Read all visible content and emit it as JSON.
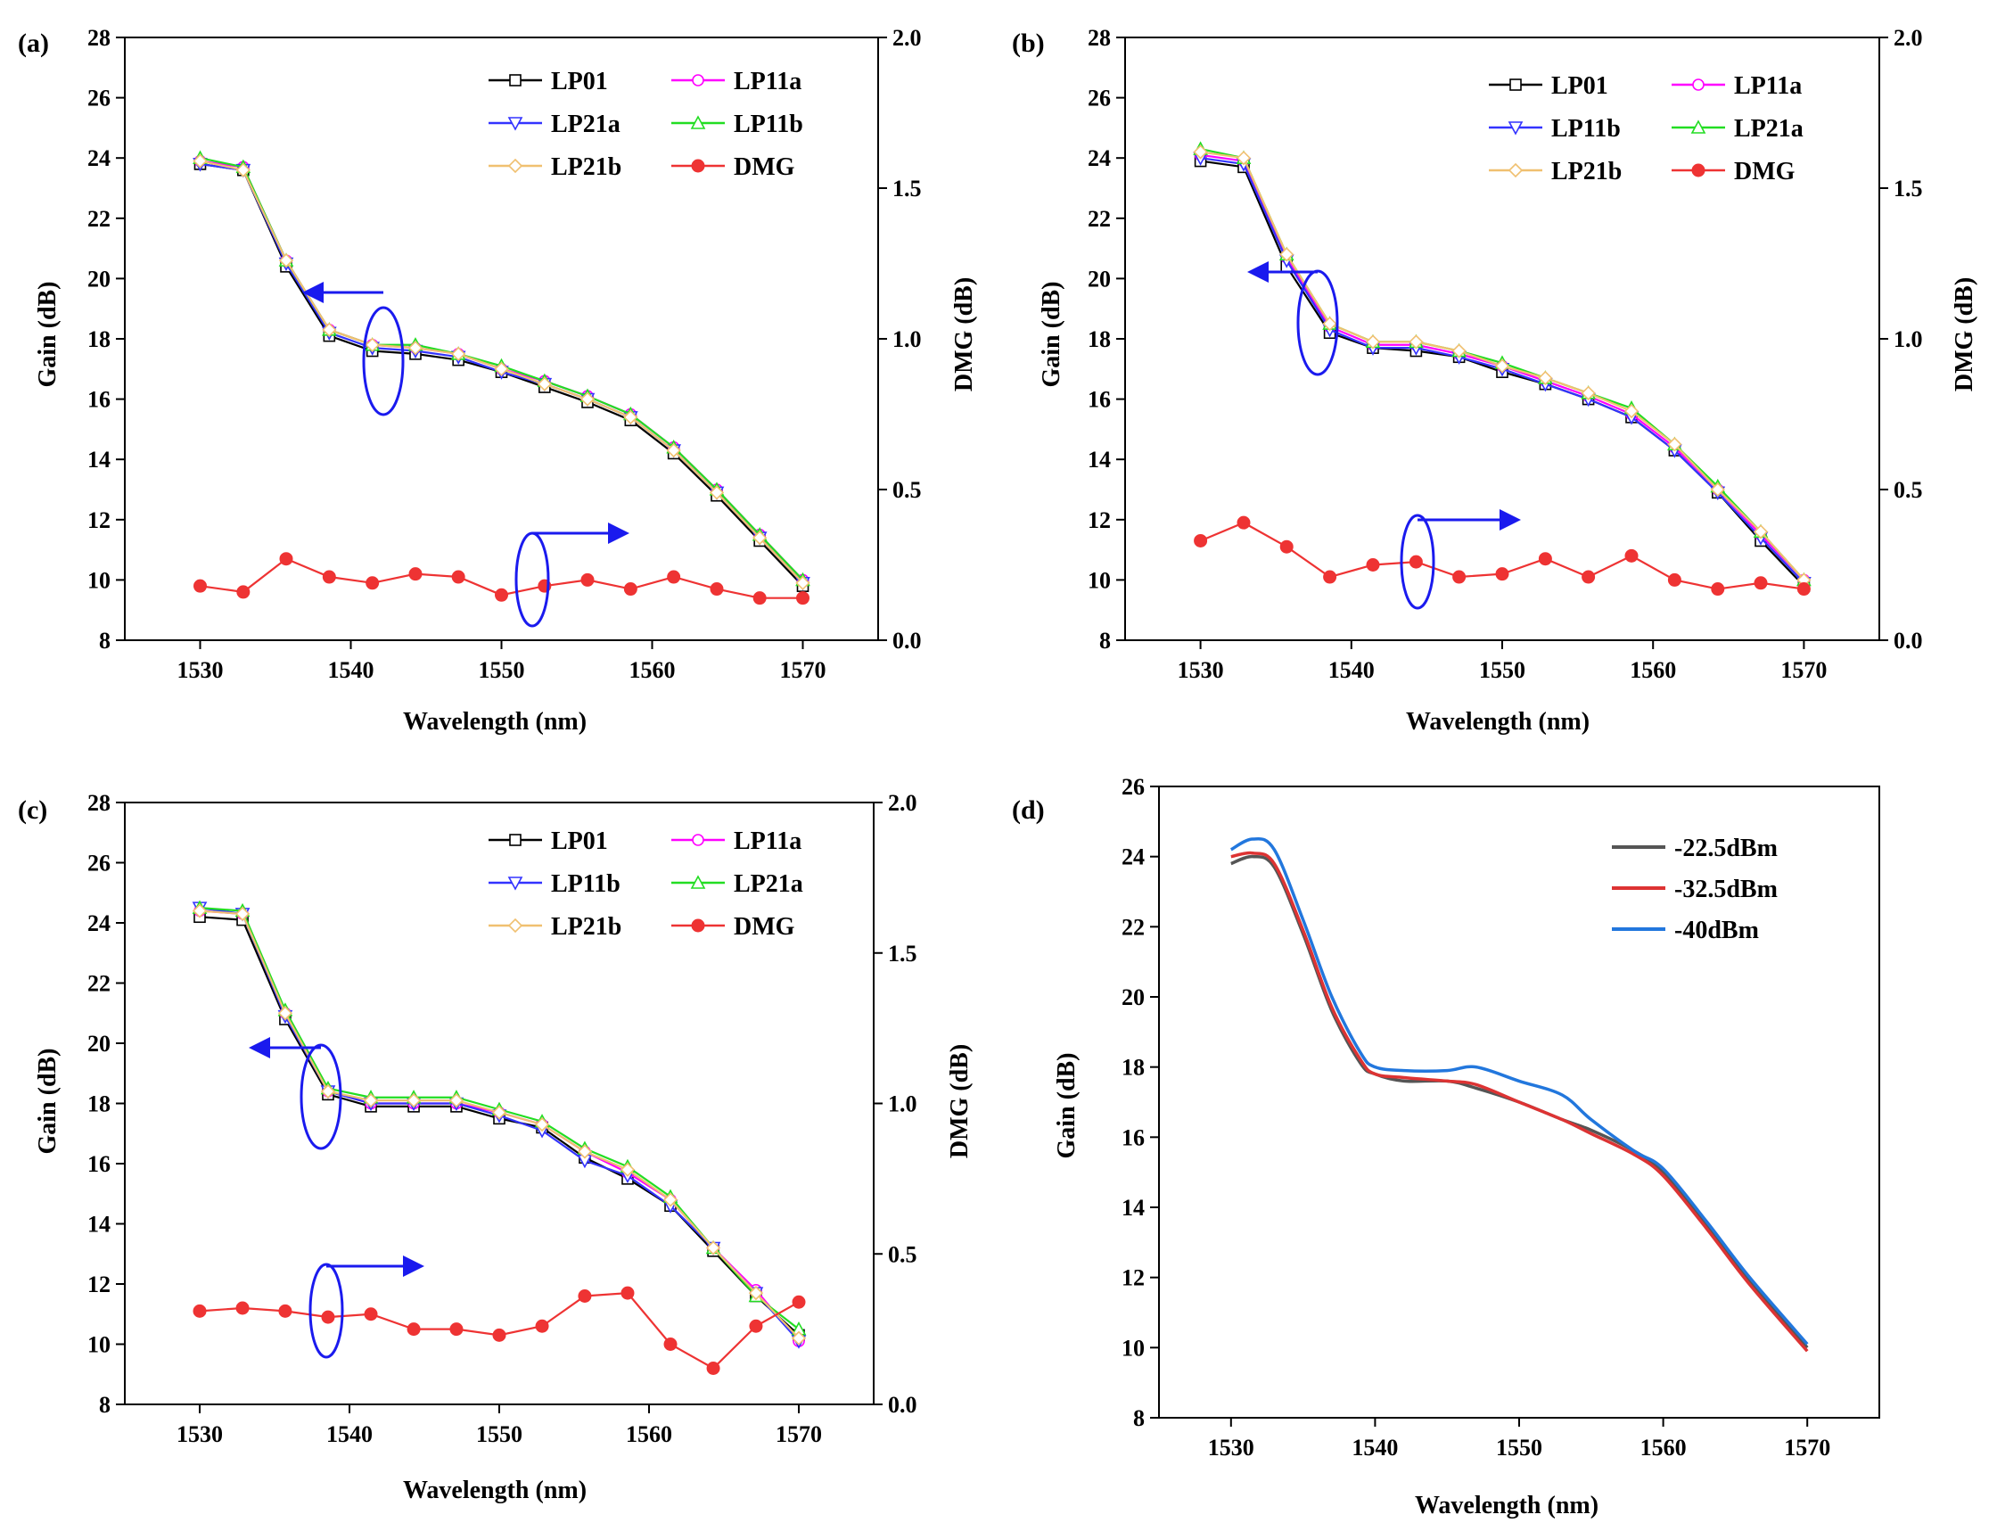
{
  "chart_data": [
    {
      "panel": "(a)",
      "type": "line",
      "xlabel": "Wavelength (nm)",
      "ylabel": "Gain (dB)",
      "y2label": "DMG (dB)",
      "xlim": [
        1525,
        1575
      ],
      "ylim": [
        8,
        28
      ],
      "y2lim": [
        0,
        2
      ],
      "xticks": [
        1530,
        1540,
        1550,
        1560,
        1570
      ],
      "yticks": [
        8,
        10,
        12,
        14,
        16,
        18,
        20,
        22,
        24,
        26,
        28
      ],
      "y2ticks": [
        "0.0",
        "0.5",
        "1.0",
        "1.5",
        "2.0"
      ],
      "x": [
        1530,
        1532.86,
        1535.71,
        1538.57,
        1541.43,
        1544.29,
        1547.14,
        1550,
        1552.86,
        1555.71,
        1558.57,
        1561.43,
        1564.29,
        1567.14,
        1570
      ],
      "series": [
        {
          "name": "LP01",
          "axis": "left",
          "color": "#000000",
          "marker": "square",
          "values": [
            23.8,
            23.6,
            20.4,
            18.1,
            17.6,
            17.5,
            17.3,
            16.9,
            16.4,
            15.9,
            15.3,
            14.2,
            12.8,
            11.3,
            9.8
          ]
        },
        {
          "name": "LP11a",
          "axis": "left",
          "color": "#ff00ff",
          "marker": "circle",
          "values": [
            23.9,
            23.7,
            20.6,
            18.3,
            17.8,
            17.7,
            17.5,
            17.0,
            16.6,
            16.1,
            15.5,
            14.4,
            13.0,
            11.5,
            10.0
          ]
        },
        {
          "name": "LP21a",
          "axis": "left",
          "color": "#3333ff",
          "marker": "triangle-down",
          "values": [
            23.8,
            23.6,
            20.5,
            18.2,
            17.7,
            17.6,
            17.4,
            16.9,
            16.5,
            16.0,
            15.4,
            14.3,
            12.9,
            11.4,
            9.9
          ]
        },
        {
          "name": "LP11b",
          "axis": "left",
          "color": "#22dd22",
          "marker": "triangle-up",
          "values": [
            24.0,
            23.7,
            20.6,
            18.3,
            17.8,
            17.8,
            17.5,
            17.1,
            16.6,
            16.1,
            15.5,
            14.4,
            13.0,
            11.5,
            10.0
          ]
        },
        {
          "name": "LP21b",
          "axis": "left",
          "color": "#f0c070",
          "marker": "diamond",
          "values": [
            23.9,
            23.6,
            20.6,
            18.3,
            17.8,
            17.7,
            17.5,
            17.0,
            16.5,
            16.0,
            15.4,
            14.3,
            12.9,
            11.4,
            9.9
          ]
        },
        {
          "name": "DMG",
          "axis": "right",
          "color": "#ee3333",
          "marker": "filled-circle",
          "values": [
            0.18,
            0.16,
            0.27,
            0.21,
            0.19,
            0.22,
            0.21,
            0.15,
            0.18,
            0.2,
            0.17,
            0.21,
            0.17,
            0.14,
            0.14
          ]
        }
      ],
      "legend": [
        "LP01",
        "LP11a",
        "LP21a",
        "LP11b",
        "LP21b",
        "DMG"
      ]
    },
    {
      "panel": "(b)",
      "type": "line",
      "xlabel": "Wavelength (nm)",
      "ylabel": "Gain (dB)",
      "y2label": "DMG (dB)",
      "xlim": [
        1525,
        1575
      ],
      "ylim": [
        8,
        28
      ],
      "y2lim": [
        0,
        2
      ],
      "xticks": [
        1530,
        1540,
        1550,
        1560,
        1570
      ],
      "yticks": [
        8,
        10,
        12,
        14,
        16,
        18,
        20,
        22,
        24,
        26,
        28
      ],
      "y2ticks": [
        "0.0",
        "0.5",
        "1.0",
        "1.5",
        "2.0"
      ],
      "x": [
        1530,
        1532.86,
        1535.71,
        1538.57,
        1541.43,
        1544.29,
        1547.14,
        1550,
        1552.86,
        1555.71,
        1558.57,
        1561.43,
        1564.29,
        1567.14,
        1570
      ],
      "series": [
        {
          "name": "LP01",
          "axis": "left",
          "color": "#000000",
          "marker": "square",
          "values": [
            23.9,
            23.7,
            20.4,
            18.2,
            17.7,
            17.6,
            17.4,
            16.9,
            16.5,
            16.0,
            15.4,
            14.3,
            12.9,
            11.3,
            9.8
          ]
        },
        {
          "name": "LP11a",
          "axis": "left",
          "color": "#ff00ff",
          "marker": "circle",
          "values": [
            24.1,
            23.9,
            20.7,
            18.4,
            17.8,
            17.8,
            17.5,
            17.1,
            16.6,
            16.1,
            15.5,
            14.4,
            13.0,
            11.5,
            10.0
          ]
        },
        {
          "name": "LP11b",
          "axis": "left",
          "color": "#3333ff",
          "marker": "triangle-down",
          "values": [
            24.0,
            23.8,
            20.6,
            18.3,
            17.7,
            17.7,
            17.4,
            17.0,
            16.5,
            16.0,
            15.4,
            14.3,
            12.9,
            11.4,
            9.9
          ]
        },
        {
          "name": "LP21a",
          "axis": "left",
          "color": "#22dd22",
          "marker": "triangle-up",
          "values": [
            24.3,
            24.0,
            20.8,
            18.5,
            17.9,
            17.9,
            17.6,
            17.2,
            16.7,
            16.2,
            15.7,
            14.5,
            13.1,
            11.6,
            10.0
          ]
        },
        {
          "name": "LP21b",
          "axis": "left",
          "color": "#f0c070",
          "marker": "diamond",
          "values": [
            24.2,
            24.0,
            20.8,
            18.5,
            17.9,
            17.9,
            17.6,
            17.1,
            16.7,
            16.2,
            15.6,
            14.5,
            13.0,
            11.6,
            10.0
          ]
        },
        {
          "name": "DMG",
          "axis": "right",
          "color": "#ee3333",
          "marker": "filled-circle",
          "values": [
            0.33,
            0.39,
            0.31,
            0.21,
            0.25,
            0.26,
            0.21,
            0.22,
            0.27,
            0.21,
            0.28,
            0.2,
            0.17,
            0.19,
            0.17
          ]
        }
      ],
      "legend": [
        "LP01",
        "LP11a",
        "LP11b",
        "LP21a",
        "LP21b",
        "DMG"
      ]
    },
    {
      "panel": "(c)",
      "type": "line",
      "xlabel": "Wavelength (nm)",
      "ylabel": "Gain (dB)",
      "y2label": "DMG (dB)",
      "xlim": [
        1525,
        1575
      ],
      "ylim": [
        8,
        28
      ],
      "y2lim": [
        0,
        2
      ],
      "xticks": [
        1530,
        1540,
        1550,
        1560,
        1570
      ],
      "yticks": [
        8,
        10,
        12,
        14,
        16,
        18,
        20,
        22,
        24,
        26,
        28
      ],
      "y2ticks": [
        "0.0",
        "0.5",
        "1.0",
        "1.5",
        "2.0"
      ],
      "x": [
        1530,
        1532.86,
        1535.71,
        1538.57,
        1541.43,
        1544.29,
        1547.14,
        1550,
        1552.86,
        1555.71,
        1558.57,
        1561.43,
        1564.29,
        1567.14,
        1570
      ],
      "series": [
        {
          "name": "LP01",
          "axis": "left",
          "color": "#000000",
          "marker": "square",
          "values": [
            24.2,
            24.1,
            20.8,
            18.3,
            17.9,
            17.9,
            17.9,
            17.5,
            17.2,
            16.2,
            15.5,
            14.6,
            13.1,
            11.6,
            10.3
          ]
        },
        {
          "name": "LP11a",
          "axis": "left",
          "color": "#ff00ff",
          "marker": "circle",
          "values": [
            24.4,
            24.3,
            21.0,
            18.4,
            18.0,
            18.0,
            18.0,
            17.7,
            17.3,
            16.4,
            15.7,
            14.8,
            13.2,
            11.8,
            10.1
          ]
        },
        {
          "name": "LP11b",
          "axis": "left",
          "color": "#3333ff",
          "marker": "triangle-down",
          "values": [
            24.5,
            24.3,
            20.9,
            18.4,
            18.0,
            18.0,
            18.0,
            17.6,
            17.1,
            16.1,
            15.6,
            14.6,
            13.2,
            11.7,
            10.1
          ]
        },
        {
          "name": "LP21a",
          "axis": "left",
          "color": "#22dd22",
          "marker": "triangle-up",
          "values": [
            24.5,
            24.4,
            21.1,
            18.5,
            18.2,
            18.2,
            18.2,
            17.8,
            17.4,
            16.5,
            15.9,
            14.9,
            13.2,
            11.6,
            10.5
          ]
        },
        {
          "name": "LP21b",
          "axis": "left",
          "color": "#f0c070",
          "marker": "diamond",
          "values": [
            24.4,
            24.3,
            21.0,
            18.4,
            18.1,
            18.1,
            18.1,
            17.7,
            17.3,
            16.4,
            15.8,
            14.8,
            13.2,
            11.7,
            10.2
          ]
        },
        {
          "name": "DMG",
          "axis": "right",
          "color": "#ee3333",
          "marker": "filled-circle",
          "values": [
            0.31,
            0.32,
            0.31,
            0.29,
            0.3,
            0.25,
            0.25,
            0.23,
            0.26,
            0.36,
            0.37,
            0.2,
            0.12,
            0.26,
            0.34
          ]
        }
      ],
      "legend": [
        "LP01",
        "LP11a",
        "LP11b",
        "LP21a",
        "LP21b",
        "DMG"
      ]
    },
    {
      "panel": "(d)",
      "type": "line",
      "xlabel": "Wavelength (nm)",
      "ylabel": "Gain (dB)",
      "xlim": [
        1525,
        1575
      ],
      "ylim": [
        8,
        26
      ],
      "xticks": [
        1530,
        1540,
        1550,
        1560,
        1570
      ],
      "yticks": [
        8,
        10,
        12,
        14,
        16,
        18,
        20,
        22,
        24,
        26
      ],
      "x": [
        1530,
        1531.5,
        1533,
        1535,
        1537,
        1539,
        1540,
        1542,
        1545,
        1547,
        1550,
        1553,
        1555,
        1558,
        1560,
        1563,
        1566,
        1570
      ],
      "series": [
        {
          "name": "-22.5dBm",
          "color": "#555555",
          "values": [
            23.8,
            24.0,
            23.7,
            21.8,
            19.6,
            18.1,
            17.8,
            17.6,
            17.6,
            17.4,
            17.0,
            16.5,
            16.2,
            15.6,
            15.0,
            13.5,
            11.9,
            10.0
          ]
        },
        {
          "name": "-32.5dBm",
          "color": "#dd3333",
          "values": [
            24.0,
            24.1,
            23.8,
            21.9,
            19.7,
            18.2,
            17.8,
            17.7,
            17.6,
            17.5,
            17.0,
            16.5,
            16.1,
            15.5,
            14.9,
            13.4,
            11.8,
            9.9
          ]
        },
        {
          "name": "-40dBm",
          "color": "#2277dd",
          "values": [
            24.2,
            24.5,
            24.2,
            22.2,
            20.0,
            18.4,
            18.0,
            17.9,
            17.9,
            18.0,
            17.6,
            17.2,
            16.5,
            15.6,
            15.1,
            13.6,
            12.0,
            10.1
          ]
        }
      ],
      "legend": [
        "-22.5dBm",
        "-32.5dBm",
        "-40dBm"
      ]
    }
  ]
}
